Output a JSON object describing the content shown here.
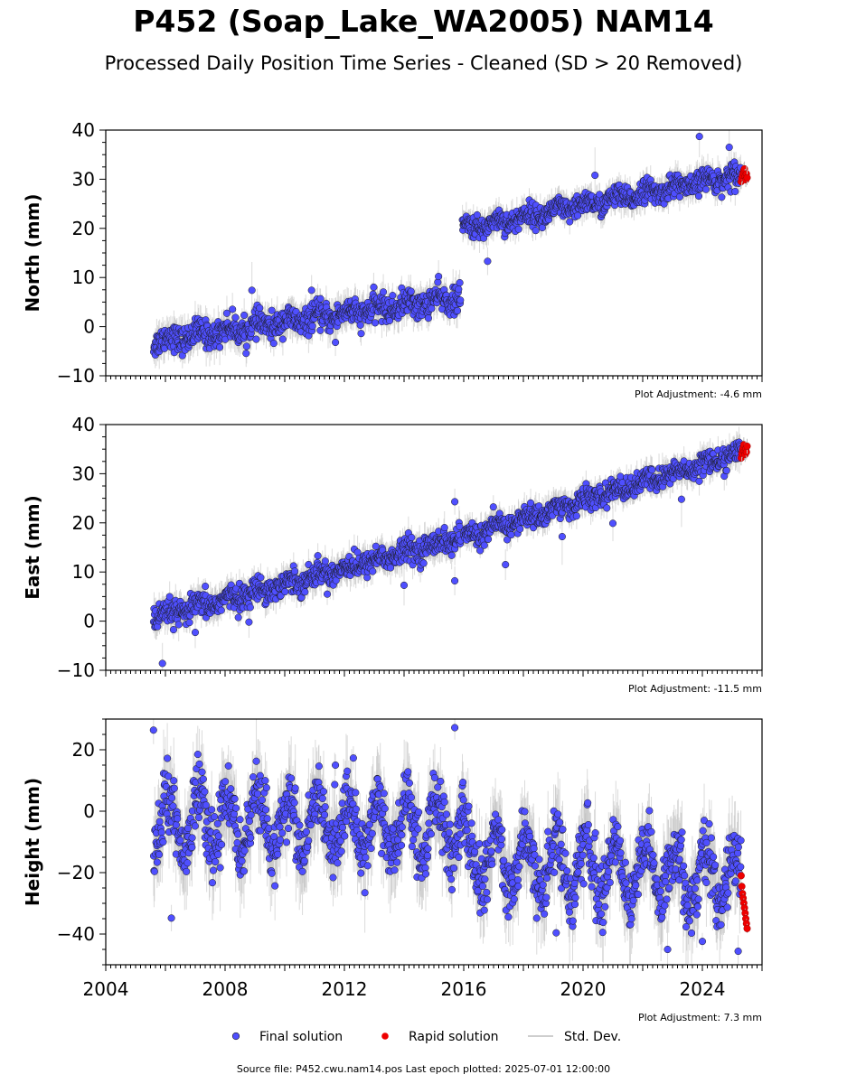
{
  "title": "P452 (Soap_Lake_WA2005) NAM14",
  "subtitle": "Processed Daily Position Time Series - Cleaned (SD > 20 Removed)",
  "source_line": "Source file: P452.cwu.nam14.pos  Last epoch plotted: 2025-07-01 12:00:00",
  "colors": {
    "final": "#4f4fff",
    "rapid": "#ee0000",
    "std": "#bdbdbd",
    "edge": "#1a1a1a"
  },
  "legend": {
    "final": "Final solution",
    "rapid": "Rapid solution",
    "std": "Std. Dev."
  },
  "chart_data": [
    {
      "type": "scatter",
      "ylabel": "North (mm)",
      "adjustment": "Plot Adjustment: -4.6 mm",
      "xlim": [
        2004,
        2026
      ],
      "ylim": [
        -10,
        40
      ],
      "yticks": [
        -10,
        0,
        10,
        20,
        30,
        40
      ],
      "xticks": [],
      "outliers": [
        [
          2008.9,
          7.4
        ],
        [
          2011.7,
          -3.2
        ],
        [
          2016.8,
          13.3
        ],
        [
          2023.9,
          38.7
        ],
        [
          2024.9,
          36.5
        ],
        [
          2010.9,
          7.4
        ],
        [
          2020.4,
          30.8
        ],
        [
          2025.1,
          27.5
        ]
      ],
      "segments": [
        {
          "x0": 2005.6,
          "x1": 2015.9,
          "y0": -3.0,
          "y1": 6.0,
          "noise": 1.3,
          "seasonal": 0.8
        },
        {
          "x0": 2015.95,
          "x1": 2025.3,
          "y0": 19.8,
          "y1": 31.0,
          "noise": 1.1,
          "seasonal": 0.8
        }
      ],
      "series": [
        {
          "name": "Final solution",
          "x_range": [
            2005.6,
            2025.3
          ]
        },
        {
          "name": "Rapid solution",
          "x_range": [
            2025.3,
            2025.5
          ],
          "values": [
            29.5,
            30.2,
            30.8,
            31.3,
            31.8,
            32.1,
            30.6,
            29.9,
            31.1,
            30.3
          ]
        }
      ]
    },
    {
      "type": "scatter",
      "ylabel": "East (mm)",
      "adjustment": "Plot Adjustment: -11.5 mm",
      "xlim": [
        2004,
        2026
      ],
      "ylim": [
        -10,
        40
      ],
      "yticks": [
        -10,
        0,
        10,
        20,
        30,
        40
      ],
      "xticks": [],
      "outliers": [
        [
          2005.9,
          -8.6
        ],
        [
          2015.7,
          24.3
        ],
        [
          2015.7,
          8.2
        ],
        [
          2017.4,
          11.5
        ],
        [
          2019.3,
          17.2
        ],
        [
          2021.0,
          19.9
        ],
        [
          2023.3,
          24.8
        ],
        [
          2014.0,
          7.3
        ],
        [
          2008.8,
          -0.2
        ],
        [
          2007.0,
          -2.3
        ]
      ],
      "segments": [
        {
          "x0": 2005.6,
          "x1": 2015.9,
          "y0": 0.5,
          "y1": 17.0,
          "noise": 1.2,
          "seasonal": 0.6
        },
        {
          "x0": 2016.0,
          "x1": 2025.3,
          "y0": 17.0,
          "y1": 34.3,
          "noise": 1.1,
          "seasonal": 0.6
        }
      ],
      "series": [
        {
          "name": "Final solution",
          "x_range": [
            2005.6,
            2025.3
          ]
        },
        {
          "name": "Rapid solution",
          "x_range": [
            2025.3,
            2025.5
          ],
          "values": [
            33.2,
            34.1,
            34.8,
            35.3,
            35.9,
            34.6,
            33.9,
            35.1,
            34.4,
            35.6
          ]
        }
      ]
    },
    {
      "type": "scatter",
      "ylabel": "Height (mm)",
      "adjustment": "Plot Adjustment: 7.3 mm",
      "xlim": [
        2004,
        2026
      ],
      "ylim": [
        -50,
        30
      ],
      "yticks": [
        -40,
        -20,
        0,
        20
      ],
      "xticks": [
        2004,
        2008,
        2012,
        2016,
        2020,
        2024
      ],
      "outliers": [
        [
          2005.6,
          26.4
        ],
        [
          2015.7,
          27.2
        ],
        [
          2006.2,
          -34.8
        ],
        [
          2024.0,
          -42.4
        ],
        [
          2025.2,
          -45.6
        ],
        [
          2019.1,
          -39.6
        ],
        [
          2012.3,
          17.3
        ],
        [
          2011.7,
          15.0
        ]
      ],
      "segments": [
        {
          "x0": 2005.6,
          "x1": 2016.0,
          "y0": -3.0,
          "y1": -6.0,
          "noise": 5.0,
          "seasonal": 9.0
        },
        {
          "x0": 2016.0,
          "x1": 2025.3,
          "y0": -15.0,
          "y1": -22.0,
          "noise": 5.0,
          "seasonal": 9.0
        }
      ],
      "series": [
        {
          "name": "Final solution",
          "x_range": [
            2005.6,
            2025.3
          ]
        },
        {
          "name": "Rapid solution",
          "x_range": [
            2025.3,
            2025.5
          ],
          "values": [
            -21.0,
            -24.5,
            -26.8,
            -28.3,
            -29.9,
            -31.5,
            -33.2,
            -35.0,
            -36.6,
            -38.2
          ]
        }
      ]
    }
  ]
}
